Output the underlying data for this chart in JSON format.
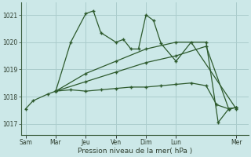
{
  "background_color": "#cce8e8",
  "grid_color": "#aacccc",
  "line_color": "#2d5a2d",
  "title": "Pression niveau de la mer( hPa )",
  "xlabel_days": [
    "Sam",
    "Mar",
    "Jeu",
    "Ven",
    "Dim",
    "Lun",
    "Mer"
  ],
  "day_positions": [
    0.0,
    2.0,
    4.0,
    6.0,
    8.0,
    10.0,
    14.0
  ],
  "xlim": [
    -0.3,
    14.8
  ],
  "ylim": [
    1016.6,
    1021.45
  ],
  "yticks": [
    1017,
    1018,
    1019,
    1020,
    1021
  ],
  "series": [
    {
      "x": [
        0.0,
        0.5,
        1.5,
        2.0,
        3.0,
        4.0,
        4.5,
        5.0,
        6.0,
        6.5,
        7.0,
        7.5,
        8.0,
        8.5,
        9.0,
        10.0,
        11.0,
        14.0
      ],
      "y": [
        1017.55,
        1017.85,
        1018.1,
        1018.2,
        1020.0,
        1021.05,
        1021.15,
        1020.35,
        1020.0,
        1020.1,
        1019.75,
        1019.75,
        1021.0,
        1020.8,
        1019.95,
        1019.3,
        1020.0,
        1017.55
      ]
    },
    {
      "x": [
        2.0,
        3.0,
        4.0,
        5.0,
        6.0,
        7.0,
        8.0,
        9.0,
        10.0,
        11.0,
        12.0,
        12.7,
        13.5,
        14.0
      ],
      "y": [
        1018.2,
        1018.25,
        1018.2,
        1018.25,
        1018.3,
        1018.35,
        1018.35,
        1018.4,
        1018.45,
        1018.5,
        1018.4,
        1017.7,
        1017.55,
        1017.6
      ]
    },
    {
      "x": [
        2.0,
        4.0,
        6.0,
        8.0,
        10.0,
        12.0,
        13.5,
        14.0
      ],
      "y": [
        1018.2,
        1018.55,
        1018.9,
        1019.25,
        1019.5,
        1019.85,
        1017.55,
        1017.6
      ]
    },
    {
      "x": [
        2.0,
        4.0,
        6.0,
        8.0,
        10.0,
        12.0,
        12.8,
        13.5,
        14.0
      ],
      "y": [
        1018.2,
        1018.85,
        1019.3,
        1019.75,
        1020.0,
        1020.0,
        1017.05,
        1017.55,
        1017.6
      ]
    }
  ]
}
